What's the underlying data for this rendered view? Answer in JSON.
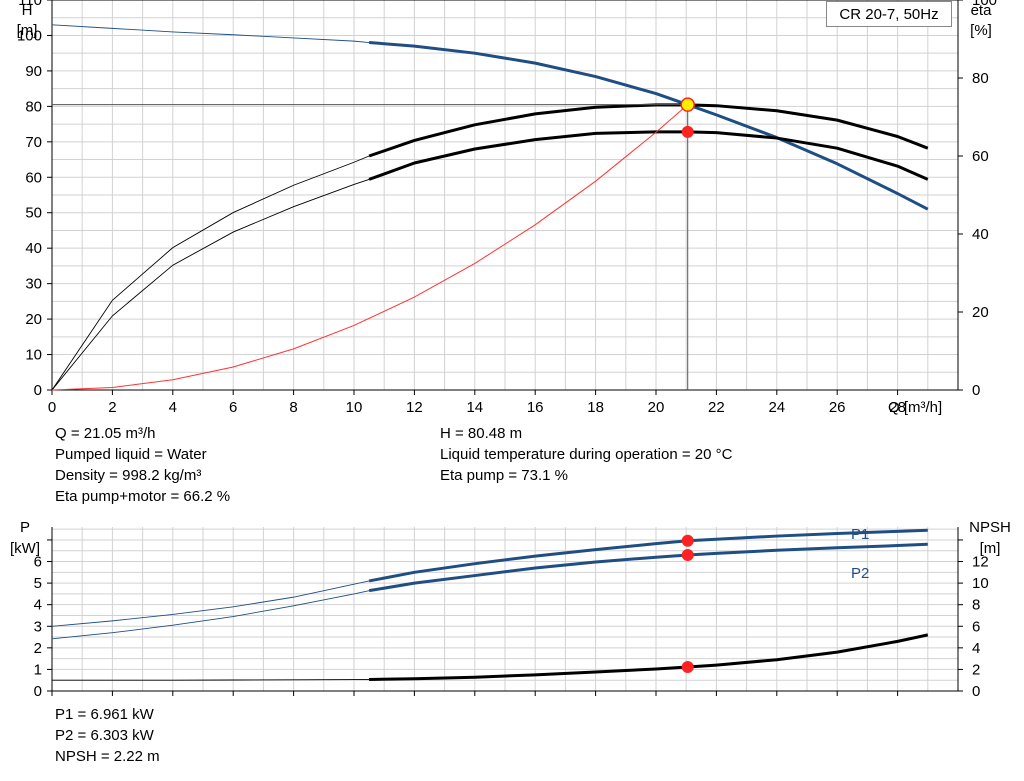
{
  "title": "CR 20-7, 50Hz",
  "chart_data": [
    {
      "type": "line",
      "name": "pump-curve",
      "x_label": "Q [m³/h]",
      "y_left_label": [
        "H",
        "[m]"
      ],
      "y_right_label": [
        "eta",
        "[%]"
      ],
      "xlim": [
        0,
        30
      ],
      "x_ticks": [
        0,
        2,
        4,
        6,
        8,
        10,
        12,
        14,
        16,
        18,
        20,
        22,
        24,
        26,
        28
      ],
      "y_left_lim": [
        0,
        110
      ],
      "y_left_ticks": [
        0,
        10,
        20,
        30,
        40,
        50,
        60,
        70,
        80,
        90,
        100,
        110
      ],
      "y_right_lim": [
        0,
        100
      ],
      "y_right_ticks": [
        0,
        20,
        40,
        60,
        80,
        100
      ],
      "grid": true,
      "series": [
        {
          "axis": "left",
          "color": "#1f4e85",
          "style": "thin-then-thick",
          "thick_from": 10.5,
          "x": [
            0,
            2,
            4,
            6,
            8,
            10,
            10.5,
            12,
            14,
            16,
            18,
            20,
            21.05,
            22,
            24,
            26,
            28,
            29
          ],
          "values": [
            103,
            102,
            101,
            100.2,
            99.3,
            98.4,
            98,
            97,
            95,
            92.2,
            88.4,
            83.6,
            80.48,
            77.6,
            71.2,
            63.8,
            55.4,
            51
          ]
        },
        {
          "name": "Eta pump",
          "axis": "right",
          "color": "#000000",
          "style": "thin-then-thick",
          "thick_from": 10.5,
          "x": [
            0,
            2,
            4,
            6,
            8,
            10,
            10.5,
            12,
            14,
            16,
            18,
            20,
            21.05,
            22,
            24,
            26,
            28,
            29
          ],
          "values": [
            0,
            23,
            36.5,
            45.5,
            52.5,
            58.4,
            60,
            64,
            68,
            70.8,
            72.5,
            73.1,
            73.1,
            72.9,
            71.6,
            69.2,
            65,
            62
          ]
        },
        {
          "name": "Eta pump+motor",
          "axis": "right",
          "color": "#000000",
          "style": "thin-then-thick",
          "thick_from": 10.5,
          "x": [
            0,
            2,
            4,
            6,
            8,
            10,
            10.5,
            12,
            14,
            16,
            18,
            20,
            21.05,
            22,
            24,
            26,
            28,
            29
          ],
          "values": [
            0,
            19,
            32,
            40.5,
            47,
            52.7,
            54,
            58.2,
            61.8,
            64.2,
            65.8,
            66.2,
            66.2,
            66,
            64.6,
            62,
            57.4,
            54
          ]
        },
        {
          "name": "system-curve",
          "axis": "left",
          "color": "#ff3333",
          "style": "thin",
          "x": [
            0,
            2,
            4,
            6,
            8,
            10,
            12,
            14,
            16,
            18,
            20,
            21.05
          ],
          "values": [
            0,
            0.7,
            2.9,
            6.5,
            11.6,
            18.2,
            26.2,
            35.7,
            46.6,
            58.9,
            72.7,
            80.48
          ]
        }
      ],
      "operating_point": {
        "q": 21.05,
        "h": 80.48,
        "eta_pump": 73.1,
        "eta_total": 66.2
      }
    },
    {
      "type": "line",
      "name": "power-npsh",
      "y_left_label": [
        "P",
        "[kW]"
      ],
      "y_right_label": [
        "NPSH",
        "[m]"
      ],
      "xlim": [
        0,
        30
      ],
      "x_ticks": [
        0,
        2,
        4,
        6,
        8,
        10,
        12,
        14,
        16,
        18,
        20,
        22,
        24,
        26,
        28
      ],
      "y_left_lim": [
        0,
        7.6
      ],
      "y_left_ticks": [
        0,
        1,
        2,
        3,
        4,
        5,
        6
      ],
      "y_right_lim": [
        0,
        15.2
      ],
      "y_right_ticks": [
        0,
        2,
        4,
        6,
        8,
        10,
        12
      ],
      "grid": true,
      "series": [
        {
          "name": "P1",
          "axis": "left",
          "color": "#1f4e85",
          "style": "thin-then-thick",
          "thick_from": 10.5,
          "x": [
            0,
            2,
            4,
            6,
            8,
            10,
            10.5,
            12,
            14,
            16,
            18,
            20,
            21.05,
            22,
            24,
            26,
            28,
            29
          ],
          "values": [
            3.0,
            3.25,
            3.55,
            3.9,
            4.35,
            4.95,
            5.1,
            5.5,
            5.9,
            6.25,
            6.55,
            6.83,
            6.961,
            7.03,
            7.18,
            7.3,
            7.4,
            7.45
          ]
        },
        {
          "name": "P2",
          "axis": "left",
          "color": "#1f4e85",
          "style": "thin-then-thick",
          "thick_from": 10.5,
          "x": [
            0,
            2,
            4,
            6,
            8,
            10,
            10.5,
            12,
            14,
            16,
            18,
            20,
            21.05,
            22,
            24,
            26,
            28,
            29
          ],
          "values": [
            2.42,
            2.7,
            3.05,
            3.45,
            3.95,
            4.5,
            4.65,
            5.0,
            5.35,
            5.7,
            5.98,
            6.2,
            6.303,
            6.38,
            6.52,
            6.64,
            6.74,
            6.8
          ]
        },
        {
          "name": "NPSH",
          "axis": "right",
          "color": "#000000",
          "style": "thin-then-thick",
          "thick_from": 10.5,
          "x": [
            0,
            2,
            4,
            6,
            8,
            10,
            10.5,
            12,
            14,
            16,
            18,
            20,
            21.05,
            22,
            24,
            26,
            28,
            29
          ],
          "values": [
            1.0,
            1.0,
            1.0,
            1.02,
            1.04,
            1.06,
            1.07,
            1.13,
            1.28,
            1.5,
            1.76,
            2.04,
            2.22,
            2.4,
            2.9,
            3.6,
            4.6,
            5.2
          ]
        }
      ],
      "operating_point": {
        "q": 21.05,
        "p1": 6.961,
        "p2": 6.303,
        "npsh": 2.22
      },
      "series_labels": [
        "P1",
        "P2"
      ]
    }
  ],
  "info_top_left": [
    "Q = 21.05 m³/h",
    "Pumped liquid = Water",
    "Density = 998.2 kg/m³",
    "Eta pump+motor = 66.2 %"
  ],
  "info_top_right": [
    "H = 80.48 m",
    "Liquid temperature during operation = 20 °C",
    "Eta pump = 73.1 %"
  ],
  "info_bottom": [
    "P1 = 6.961 kW",
    "P2 = 6.303 kW",
    "NPSH = 2.22 m"
  ]
}
